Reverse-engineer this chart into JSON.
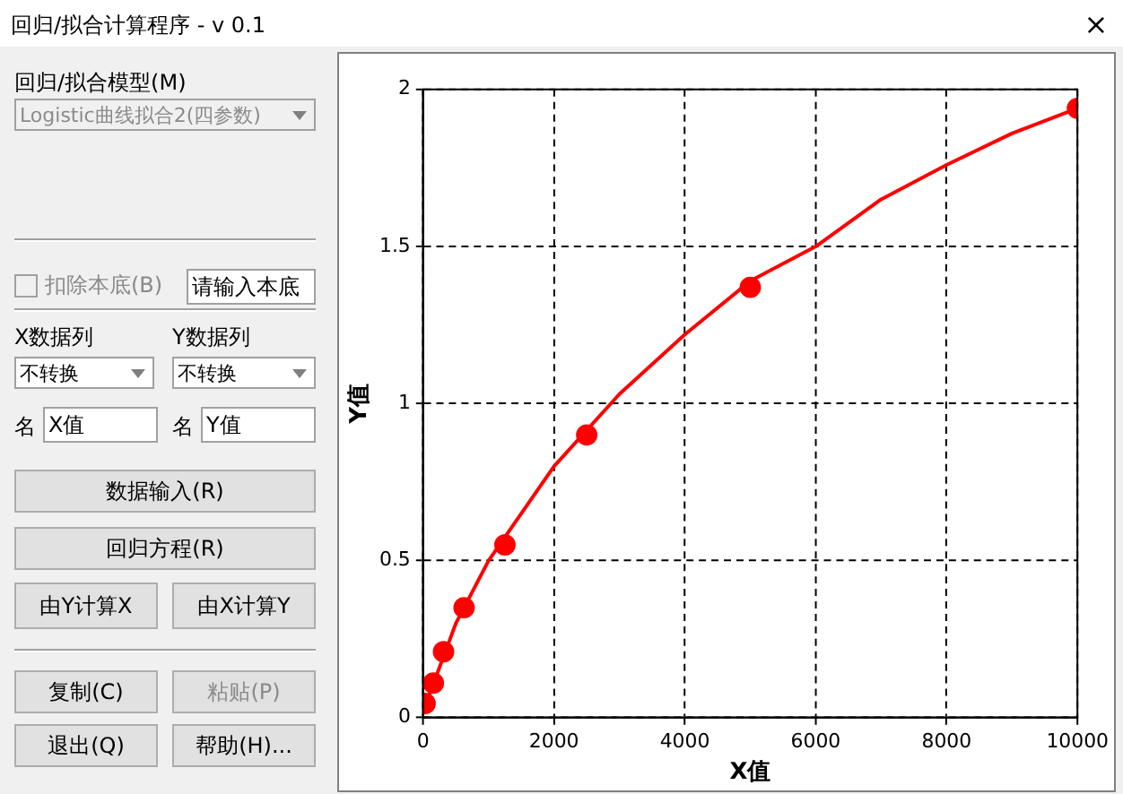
{
  "chart_data": {
    "type": "scatter",
    "xlabel": "X值",
    "ylabel": "Y值",
    "x": [
      30,
      156,
      312,
      625,
      1250,
      2500,
      5000,
      10000
    ],
    "series": [
      {
        "type": "scatter",
        "color": "#ff0000",
        "marker": "circle",
        "values": [
          0.045,
          0.11,
          0.21,
          0.35,
          0.55,
          0.9,
          1.37,
          1.94
        ]
      },
      {
        "type": "line",
        "color": "#ff0000",
        "marker": "none",
        "x": [
          0,
          500,
          1000,
          2000,
          3000,
          4000,
          5000,
          6000,
          7000,
          8000,
          9000,
          10000
        ],
        "values": [
          0.02,
          0.3,
          0.5,
          0.8,
          1.03,
          1.22,
          1.39,
          1.5,
          1.65,
          1.76,
          1.86,
          1.94
        ]
      }
    ],
    "xlim": [
      0,
      10000
    ],
    "xticks": [
      0,
      2000,
      4000,
      6000,
      8000,
      10000
    ],
    "ylim": [
      0,
      2
    ],
    "yticks": [
      0,
      0.5,
      1,
      1.5,
      2
    ],
    "grid": true,
    "annotations": [
      "回归/拟合计算程序 - v 0.1",
      "×",
      "回归/拟合模型(M)",
      "Logistic曲线拟合2(四参数)",
      "扣除本底(B)",
      "请输入本底",
      "X数据列",
      "Y数据列",
      "不转换",
      "不转换",
      "名",
      "X值",
      "名",
      "Y值",
      "数据输入(R)",
      "回归方程(R)",
      "由Y计算X",
      "由X计算Y",
      "复制(C)",
      "粘贴(P)",
      "退出(Q)",
      "帮助(H)..."
    ]
  }
}
